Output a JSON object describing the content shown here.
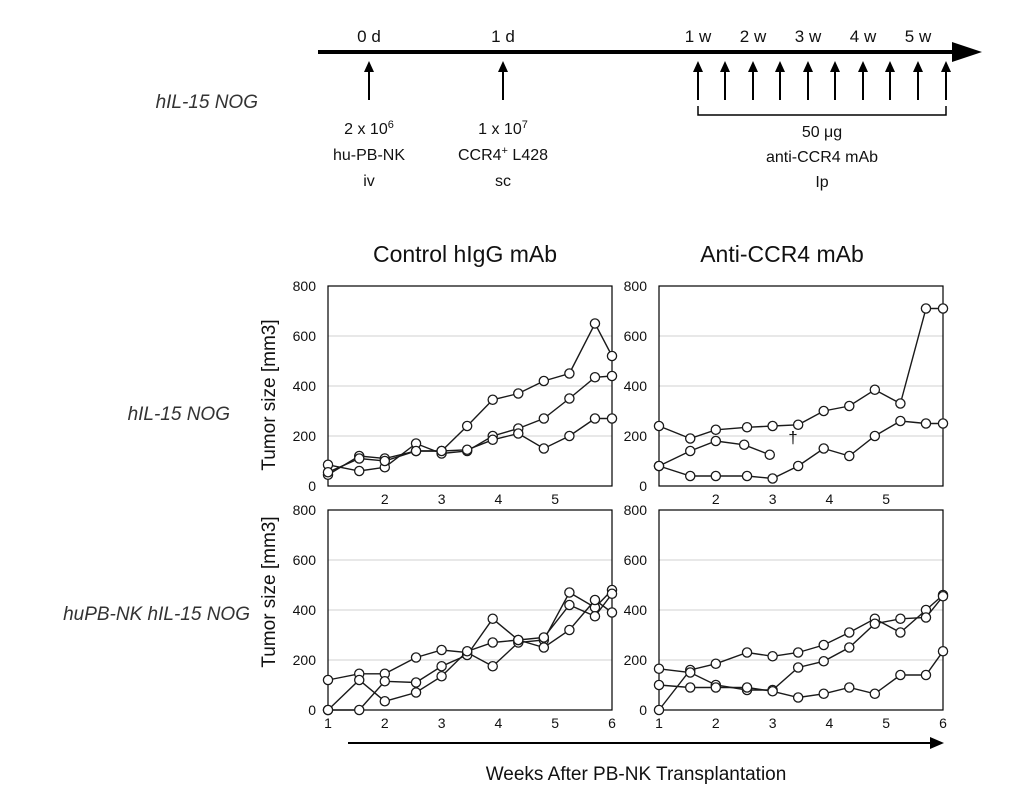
{
  "timeline": {
    "labels": [
      "0 d",
      "1 d",
      "1 w",
      "2 w",
      "3 w",
      "4 w",
      "5 w"
    ],
    "event1": {
      "line1_base": "2 x 10",
      "line1_sup": "6",
      "line2": "hu-PB-NK",
      "line3": "iv"
    },
    "event2": {
      "line1_base": "1 x 10",
      "line1_sup": "7",
      "line2_pre": "CCR4",
      "line2_sup": "+",
      "line2_post": " L428",
      "line3": "sc"
    },
    "event3": {
      "line1": "50 μg",
      "line2": "anti-CCR4 mAb",
      "line3": "Ip"
    }
  },
  "column_titles": [
    "Control hIgG mAb",
    "Anti-CCR4 mAb"
  ],
  "row_labels": [
    "hIL-15 NOG",
    "huPB-NK hIL-15 NOG"
  ],
  "timeline_row_label": "hIL-15 NOG",
  "ylabel": "Tumor size [mm3]",
  "xlabel": "Weeks After PB-NK Transplantation",
  "dagger": "†",
  "chart_data": [
    {
      "type": "line",
      "title": "Control hIgG mAb",
      "row": "hIL-15 NOG",
      "ylabel": "Tumor size [mm3]",
      "xlabel": "",
      "xlim": [
        1,
        6
      ],
      "ylim": [
        0,
        800
      ],
      "xticks": [
        2,
        3,
        4,
        5
      ],
      "yticks": [
        0,
        200,
        400,
        600,
        800
      ],
      "grid": true,
      "series": [
        {
          "x": [
            1,
            1.55,
            2,
            2.55,
            3,
            3.45,
            3.9,
            4.35,
            4.8,
            5.25,
            5.7,
            6
          ],
          "y": [
            45,
            120,
            110,
            140,
            140,
            240,
            345,
            370,
            420,
            450,
            650,
            520
          ]
        },
        {
          "x": [
            1,
            1.55,
            2,
            2.55,
            3,
            3.45,
            3.9,
            4.35,
            4.8,
            5.25,
            5.7,
            6
          ],
          "y": [
            85,
            60,
            75,
            170,
            130,
            140,
            200,
            230,
            270,
            350,
            435,
            440
          ]
        },
        {
          "x": [
            1,
            1.55,
            2,
            2.55,
            3,
            3.45,
            3.9,
            4.35,
            4.8,
            5.25,
            5.7,
            6
          ],
          "y": [
            55,
            110,
            100,
            140,
            140,
            145,
            185,
            210,
            150,
            200,
            270,
            270
          ]
        }
      ]
    },
    {
      "type": "line",
      "title": "Anti-CCR4 mAb",
      "row": "hIL-15 NOG",
      "ylabel": "",
      "xlabel": "",
      "xlim": [
        1,
        6
      ],
      "ylim": [
        0,
        800
      ],
      "xticks": [
        2,
        3,
        4,
        5
      ],
      "yticks": [
        0,
        200,
        400,
        600,
        800
      ],
      "grid": true,
      "series": [
        {
          "x": [
            1,
            1.55,
            2,
            2.55,
            3,
            3.45,
            3.9,
            4.35,
            4.8,
            5.25,
            5.7,
            6
          ],
          "y": [
            240,
            190,
            225,
            235,
            240,
            245,
            300,
            320,
            385,
            330,
            710,
            710
          ]
        },
        {
          "x": [
            1,
            1.55,
            2,
            2.5,
            2.95
          ],
          "y": [
            80,
            140,
            180,
            165,
            125
          ]
        },
        {
          "x": [
            1,
            1.55,
            2,
            2.55,
            3,
            3.45,
            3.9,
            4.35,
            4.8,
            5.25,
            5.7,
            6
          ],
          "y": [
            80,
            40,
            40,
            40,
            30,
            80,
            150,
            120,
            200,
            260,
            250,
            250
          ]
        }
      ]
    },
    {
      "type": "line",
      "title": "",
      "row": "huPB-NK hIL-15 NOG",
      "ylabel": "Tumor size [mm3]",
      "xlabel": "",
      "xlim": [
        1,
        6
      ],
      "ylim": [
        0,
        800
      ],
      "xticks": [
        1,
        2,
        3,
        4,
        5,
        6
      ],
      "yticks": [
        0,
        200,
        400,
        600,
        800
      ],
      "grid": true,
      "series": [
        {
          "x": [
            1,
            1.55,
            2,
            2.55,
            3,
            3.45,
            3.9,
            4.35,
            4.8,
            5.25,
            5.7,
            6
          ],
          "y": [
            120,
            145,
            145,
            210,
            240,
            230,
            175,
            270,
            280,
            470,
            410,
            480
          ]
        },
        {
          "x": [
            1,
            1.55,
            2,
            2.55,
            3,
            3.45,
            3.9,
            4.35,
            4.8,
            5.25,
            5.7,
            6
          ],
          "y": [
            0,
            0,
            115,
            110,
            175,
            220,
            365,
            280,
            250,
            320,
            440,
            390
          ]
        },
        {
          "x": [
            1,
            1.55,
            2,
            2.55,
            3,
            3.45,
            3.9,
            4.35,
            4.8,
            5.25,
            5.7,
            6
          ],
          "y": [
            0,
            120,
            35,
            70,
            135,
            235,
            270,
            280,
            290,
            420,
            375,
            465
          ]
        }
      ]
    },
    {
      "type": "line",
      "title": "",
      "row": "huPB-NK hIL-15 NOG",
      "ylabel": "",
      "xlabel": "",
      "xlim": [
        1,
        6
      ],
      "ylim": [
        0,
        800
      ],
      "xticks": [
        1,
        2,
        3,
        4,
        5,
        6
      ],
      "yticks": [
        0,
        200,
        400,
        600,
        800
      ],
      "grid": true,
      "series": [
        {
          "x": [
            1,
            1.55,
            2,
            2.55,
            3,
            3.45,
            3.9,
            4.35,
            4.8,
            5.25,
            5.7,
            6
          ],
          "y": [
            0,
            160,
            185,
            230,
            215,
            230,
            260,
            310,
            365,
            310,
            400,
            460
          ]
        },
        {
          "x": [
            1,
            1.55,
            2,
            2.55,
            3,
            3.45,
            3.9,
            4.35,
            4.8,
            5.25,
            5.7,
            6
          ],
          "y": [
            165,
            150,
            100,
            80,
            80,
            170,
            195,
            250,
            345,
            365,
            370,
            455
          ]
        },
        {
          "x": [
            1,
            1.55,
            2,
            2.55,
            3,
            3.45,
            3.9,
            4.35,
            4.8,
            5.25,
            5.7,
            6
          ],
          "y": [
            100,
            90,
            90,
            90,
            75,
            50,
            65,
            90,
            65,
            140,
            140,
            235
          ]
        }
      ]
    }
  ]
}
